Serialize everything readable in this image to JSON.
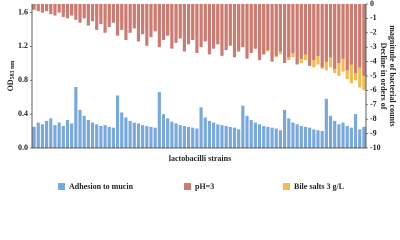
{
  "chart_data": {
    "type": "bar",
    "ylabel": "OD",
    "ylabel_sub": "583 nm",
    "y2label": [
      "Decline in orders of",
      "magnitude of bacterial counts"
    ],
    "xlabel": "lactobacilli strains",
    "categories": [
      null,
      null,
      null,
      null,
      null,
      null,
      null,
      null,
      null,
      null,
      null,
      null,
      null,
      null,
      null,
      null,
      null,
      null,
      null,
      null,
      null,
      null,
      null,
      null,
      null,
      null,
      null,
      null,
      null,
      null,
      null,
      null,
      null,
      null,
      null,
      null,
      null,
      null,
      null,
      null,
      null,
      null,
      null,
      null,
      null,
      null,
      null,
      null,
      null,
      null,
      null,
      null,
      null,
      null,
      null,
      null,
      null,
      null,
      null,
      null,
      null,
      null,
      null,
      null,
      null,
      null,
      null,
      null,
      null,
      null,
      null,
      null,
      null,
      null,
      null,
      null,
      null,
      null,
      null,
      null
    ],
    "ylim": [
      0,
      1.7
    ],
    "yticks": [
      {
        "value": 0,
        "label": "0.0"
      },
      0.4,
      0.8,
      1.2,
      1.6
    ],
    "y2lim": [
      0,
      -10
    ],
    "y2ticks": [
      0,
      -1,
      -2,
      -3,
      -4,
      -5,
      -6,
      -7,
      -8,
      -9,
      -10
    ],
    "series": [
      {
        "name": "Adhesion to mucin",
        "color": "#7aa8d8",
        "values": [
          0.25,
          0.3,
          0.28,
          0.32,
          0.35,
          0.27,
          0.3,
          0.26,
          0.33,
          0.29,
          0.72,
          0.45,
          0.38,
          0.33,
          0.3,
          0.28,
          0.26,
          0.27,
          0.25,
          0.24,
          0.62,
          0.42,
          0.36,
          0.32,
          0.3,
          0.29,
          0.27,
          0.26,
          0.25,
          0.24,
          0.66,
          0.4,
          0.35,
          0.31,
          0.29,
          0.27,
          0.26,
          0.25,
          0.24,
          0.23,
          0.48,
          0.36,
          0.32,
          0.3,
          0.28,
          0.27,
          0.26,
          0.25,
          0.24,
          0.22,
          0.5,
          0.38,
          0.33,
          0.3,
          0.28,
          0.26,
          0.25,
          0.24,
          0.23,
          0.21,
          0.45,
          0.35,
          0.3,
          0.28,
          0.26,
          0.25,
          0.24,
          0.22,
          0.21,
          0.2,
          0.58,
          0.38,
          0.32,
          0.28,
          0.3,
          0.26,
          0.24,
          0.4,
          0.22,
          0.25
        ]
      },
      {
        "name": "pH=3",
        "color": "#c97b76",
        "axis": "y2",
        "values": [
          -0.4,
          -0.5,
          -0.6,
          -0.5,
          -0.7,
          -0.8,
          -0.6,
          -0.9,
          -1,
          -0.8,
          -1.1,
          -1.3,
          -1,
          -1.5,
          -1.2,
          -1.8,
          -1.4,
          -2,
          -1.6,
          -1.3,
          -2.2,
          -1.8,
          -2.5,
          -2,
          -1.7,
          -2.6,
          -2.1,
          -2.9,
          -2.3,
          -1.9,
          -3,
          -2.5,
          -2.2,
          -3.1,
          -2.7,
          -2.4,
          -3.3,
          -2.8,
          -2.5,
          -3.4,
          -3,
          -2.6,
          -3.5,
          -3.1,
          -2.8,
          -3.6,
          -3.2,
          -2.9,
          -3.7,
          -3.3,
          -3,
          -3.8,
          -3.4,
          -3.1,
          -3.9,
          -3.5,
          -3.2,
          -4,
          -3.6,
          -3.3,
          -4.1,
          -3.7,
          -3.4,
          -4.2,
          -3.8,
          -3.5,
          -4.3,
          -3.9,
          -3.6,
          -4.4,
          -4,
          -3.7,
          -4.5,
          -4.1,
          -3.8,
          -4.6,
          -4.2,
          -4.8,
          -4.4,
          -5
        ]
      },
      {
        "name": "Bile salts 3 g/L",
        "color": "#f0bb55",
        "axis": "y2",
        "values": [
          -0.3,
          -0.3,
          -0.4,
          -0.3,
          -0.5,
          -0.4,
          -0.5,
          -0.6,
          -0.5,
          -0.7,
          -0.6,
          -0.8,
          -0.7,
          -0.9,
          -1,
          -0.8,
          -1.1,
          -1,
          -1.2,
          -1.1,
          -1.3,
          -1.2,
          -1.4,
          -1.5,
          -1.3,
          -1.6,
          -1.5,
          -1.7,
          -1.8,
          -1.6,
          -1.9,
          -1.8,
          -2,
          -2.1,
          -1.9,
          -2.2,
          -2.1,
          -2.3,
          -2.4,
          -2.2,
          -2.5,
          -2.4,
          -2.6,
          -2.7,
          -2.5,
          -2.8,
          -2.9,
          -2.7,
          -3,
          -3.1,
          -2.9,
          -3.2,
          -3.3,
          -3.1,
          -3.4,
          -3.5,
          -3.3,
          -3.6,
          -3.7,
          -3.5,
          -3.8,
          -3.9,
          -3.7,
          -4,
          -4.1,
          -3.9,
          -4.2,
          -4.4,
          -4.2,
          -4.5,
          -4.6,
          -4.4,
          -4.8,
          -5,
          -4.7,
          -5.2,
          -5.5,
          -5.3,
          -5.8,
          -6
        ]
      }
    ]
  }
}
